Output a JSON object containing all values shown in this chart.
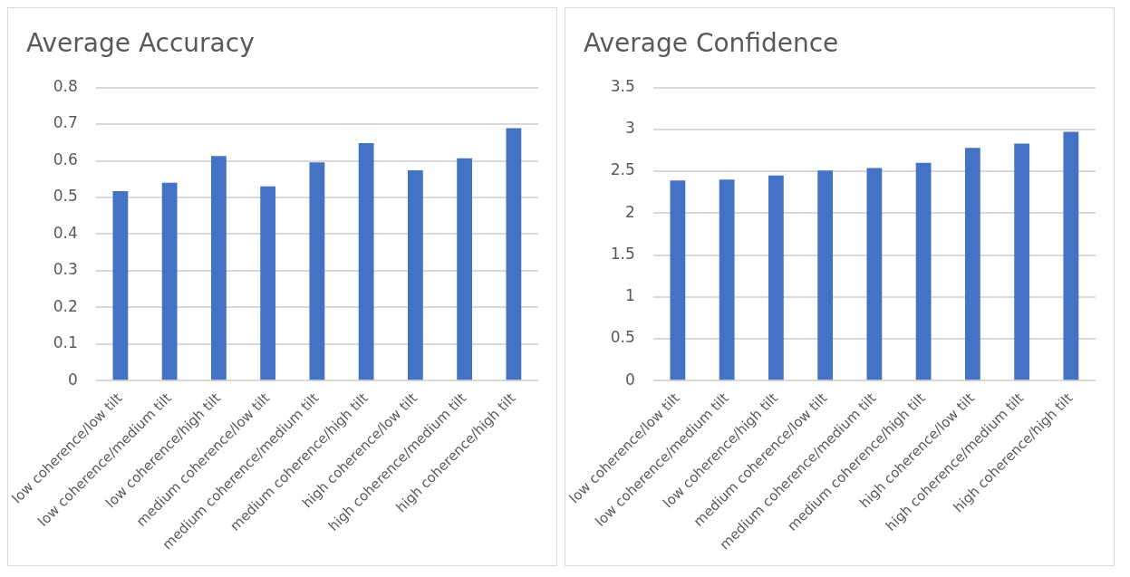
{
  "chart_data": [
    {
      "type": "bar",
      "title": "Average Accuracy",
      "categories": [
        "low coherence/low tilt",
        "low coherence/medium tilt",
        "low coherence/high tilt",
        "medium coherence/low tilt",
        "medium coherence/medium tilt",
        "medium coherence/high tilt",
        "high coherence/low tilt",
        "high coherence/medium tilt",
        "high coherence/high tilt"
      ],
      "values": [
        0.517,
        0.54,
        0.613,
        0.53,
        0.596,
        0.648,
        0.574,
        0.607,
        0.689
      ],
      "color": "#4472c4",
      "ylim": [
        0,
        0.8
      ],
      "yticks": [
        0,
        0.1,
        0.2,
        0.3,
        0.4,
        0.5,
        0.6,
        0.7,
        0.8
      ],
      "grid": "y"
    },
    {
      "type": "bar",
      "title": "Average Confidence",
      "categories": [
        "low coherence/low tilt",
        "low coherence/medium tilt",
        "low coherence/high tilt",
        "medium coherence/low tilt",
        "medium coherence/medium tilt",
        "medium coherence/high tilt",
        "high coherence/low tilt",
        "high coherence/medium tilt",
        "high coherence/high tilt"
      ],
      "values": [
        2.39,
        2.4,
        2.45,
        2.51,
        2.54,
        2.6,
        2.78,
        2.83,
        2.97
      ],
      "color": "#4472c4",
      "ylim": [
        0,
        3.5
      ],
      "yticks": [
        0,
        0.5,
        1,
        1.5,
        2,
        2.5,
        3,
        3.5
      ],
      "grid": "y"
    }
  ]
}
